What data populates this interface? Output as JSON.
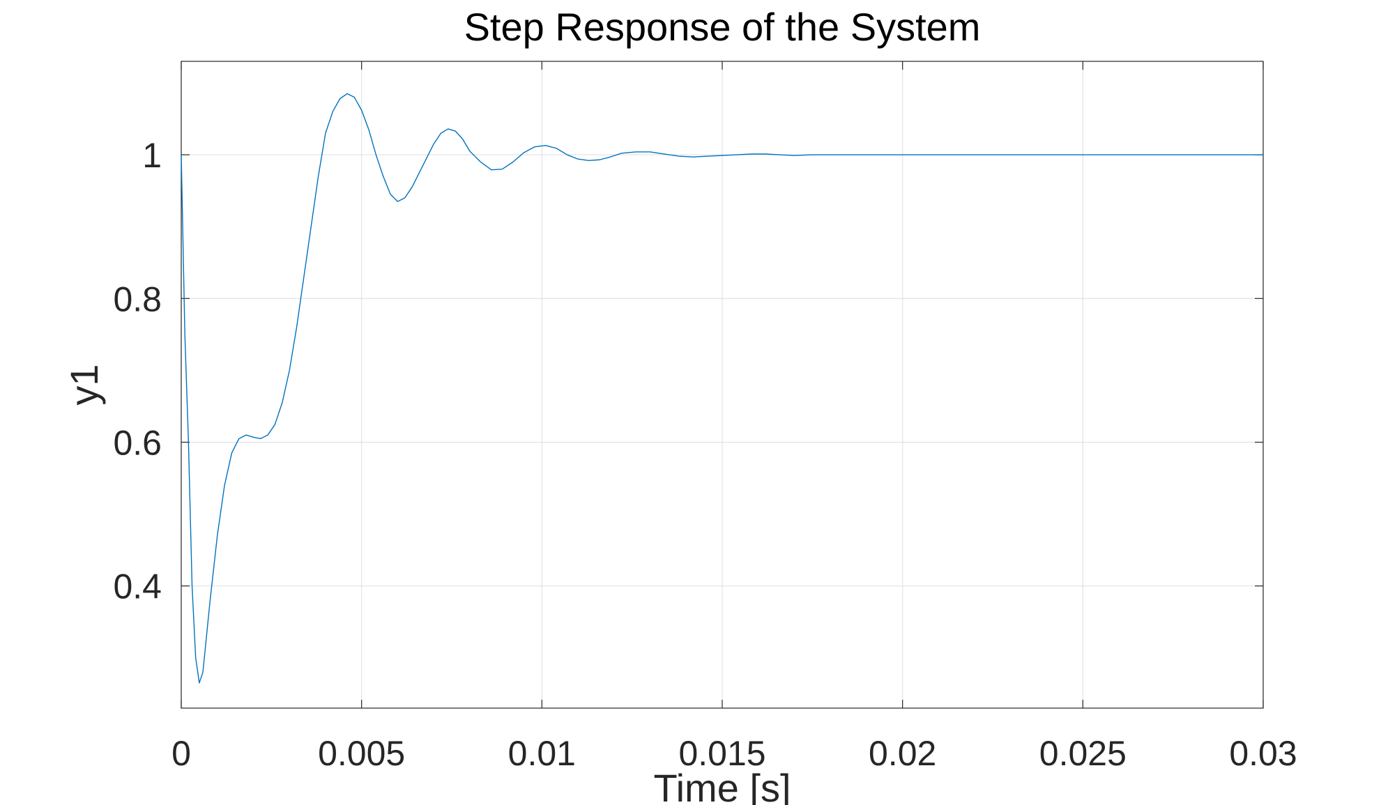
{
  "chart_data": {
    "type": "line",
    "title": "Step Response of the System",
    "xlabel": "Time [s]",
    "ylabel": "y1",
    "xlim": [
      0,
      0.03
    ],
    "ylim": [
      0.23,
      1.13
    ],
    "xticks": [
      0,
      0.005,
      0.01,
      0.015,
      0.02,
      0.025,
      0.03
    ],
    "xtick_labels": [
      "0",
      "0.005",
      "0.01",
      "0.015",
      "0.02",
      "0.025",
      "0.03"
    ],
    "yticks": [
      0.4,
      0.6,
      0.8,
      1
    ],
    "ytick_labels": [
      "0.4",
      "0.6",
      "0.8",
      "1"
    ],
    "grid": true,
    "series": [
      {
        "color": "#0072bd",
        "x": [
          0,
          0.0001,
          0.0002,
          0.0003,
          0.0004,
          0.0005,
          0.0006,
          0.0008,
          0.001,
          0.0012,
          0.0014,
          0.0016,
          0.0018,
          0.002,
          0.0022,
          0.0024,
          0.0026,
          0.0028,
          0.003,
          0.0032,
          0.0034,
          0.0036,
          0.0038,
          0.004,
          0.0042,
          0.0044,
          0.0046,
          0.0048,
          0.005,
          0.0052,
          0.0054,
          0.0056,
          0.0058,
          0.006,
          0.0062,
          0.0064,
          0.0066,
          0.0068,
          0.007,
          0.0072,
          0.0074,
          0.0076,
          0.0078,
          0.008,
          0.0083,
          0.0086,
          0.0089,
          0.0092,
          0.0095,
          0.0098,
          0.0101,
          0.0104,
          0.0107,
          0.011,
          0.0113,
          0.0116,
          0.0119,
          0.0122,
          0.0126,
          0.013,
          0.0134,
          0.0138,
          0.0142,
          0.0146,
          0.015,
          0.0154,
          0.0158,
          0.0162,
          0.0166,
          0.017,
          0.0175,
          0.018,
          0.0186,
          0.0192,
          0.0198,
          0.0205,
          0.0212,
          0.022,
          0.023,
          0.024,
          0.025,
          0.026,
          0.027,
          0.028,
          0.029,
          0.03
        ],
        "y": [
          1.0,
          0.75,
          0.6,
          0.4,
          0.3,
          0.265,
          0.28,
          0.38,
          0.47,
          0.54,
          0.585,
          0.605,
          0.61,
          0.607,
          0.605,
          0.61,
          0.625,
          0.655,
          0.7,
          0.76,
          0.83,
          0.9,
          0.97,
          1.03,
          1.06,
          1.078,
          1.085,
          1.08,
          1.062,
          1.035,
          1.0,
          0.97,
          0.945,
          0.935,
          0.94,
          0.955,
          0.975,
          0.995,
          1.015,
          1.03,
          1.036,
          1.033,
          1.022,
          1.005,
          0.99,
          0.979,
          0.98,
          0.99,
          1.003,
          1.011,
          1.013,
          1.009,
          1.0,
          0.994,
          0.992,
          0.993,
          0.997,
          1.002,
          1.004,
          1.004,
          1.001,
          0.998,
          0.997,
          0.998,
          0.999,
          1.0,
          1.001,
          1.001,
          1.0,
          0.999,
          1.0,
          1.0,
          1.0,
          1.0,
          1.0,
          1.0,
          1.0,
          1.0,
          1.0,
          1.0,
          1.0,
          1.0,
          1.0,
          1.0,
          1.0,
          1.0
        ]
      }
    ]
  }
}
